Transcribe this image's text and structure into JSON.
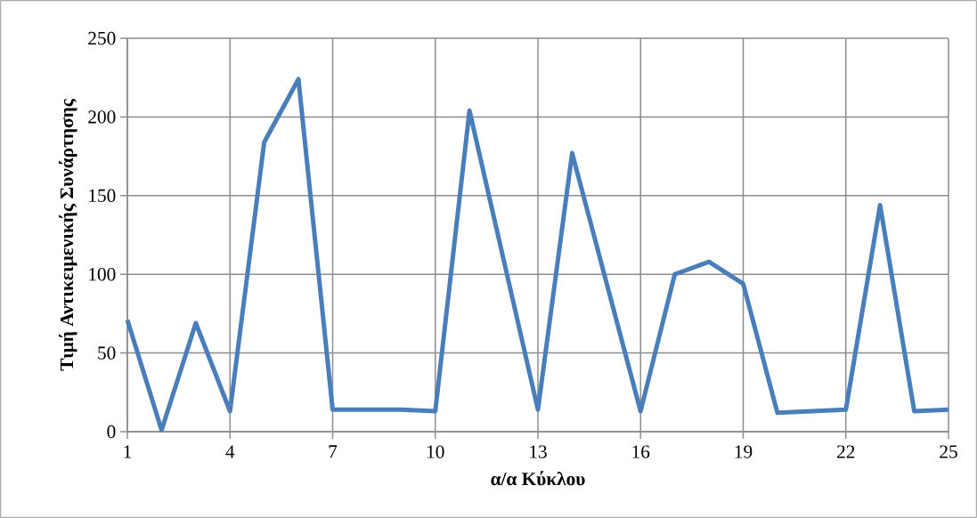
{
  "chart_data": {
    "type": "line",
    "xlabel": "α/α Κύκλου",
    "ylabel": "Τιμή Αντικειμενικής Συνάρτησης",
    "x": [
      1,
      2,
      3,
      4,
      5,
      6,
      7,
      8,
      9,
      10,
      11,
      12,
      13,
      14,
      15,
      16,
      17,
      18,
      19,
      20,
      21,
      22,
      23,
      24,
      25
    ],
    "series": [
      {
        "color": "#4a7ebb",
        "values": [
          71,
          1,
          69,
          13,
          184,
          224,
          14,
          14,
          14,
          13,
          204,
          109,
          14,
          177,
          95,
          13,
          100,
          108,
          94,
          12,
          13,
          14,
          144,
          13,
          14
        ]
      }
    ],
    "xlim": [
      1,
      25
    ],
    "ylim": [
      0,
      250
    ],
    "xticks": [
      1,
      4,
      7,
      10,
      13,
      16,
      19,
      22,
      25
    ],
    "yticks": [
      0,
      50,
      100,
      150,
      200,
      250
    ],
    "grid": true,
    "marker": "none",
    "line_style": "solid"
  }
}
